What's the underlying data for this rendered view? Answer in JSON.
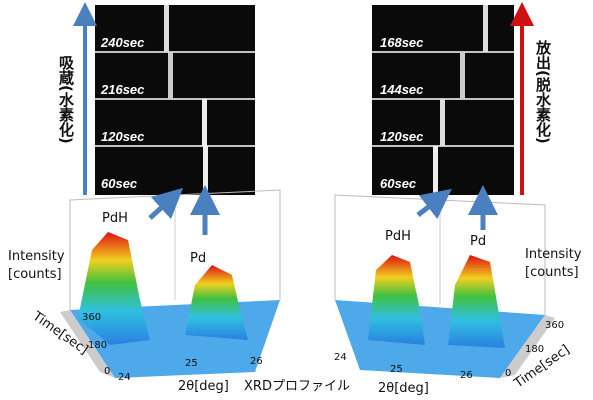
{
  "left": {
    "strips": [
      "240sec",
      "216sec",
      "120sec",
      "60sec"
    ],
    "process": "吸蔵(水素化)",
    "peaks": [
      "PdH",
      "Pd"
    ],
    "intensity_label": [
      "Intensity",
      "[counts]"
    ],
    "time_label": "Time[sec]",
    "time_ticks": [
      "360",
      "180",
      "0"
    ],
    "angle_ticks": [
      "24",
      "25",
      "26"
    ],
    "angle_label": "2θ[deg]"
  },
  "right": {
    "strips": [
      "168sec",
      "144sec",
      "120sec",
      "60sec"
    ],
    "process": "放出(脱水素化)",
    "peaks": [
      "PdH",
      "Pd"
    ],
    "intensity_label": [
      "Intensity",
      "[counts]"
    ],
    "time_label": "Time[sec]",
    "time_ticks": [
      "360",
      "180",
      "0"
    ],
    "angle_ticks": [
      "24",
      "25",
      "26"
    ],
    "angle_label": "2θ[deg]"
  },
  "caption": "XRDプロファイル"
}
